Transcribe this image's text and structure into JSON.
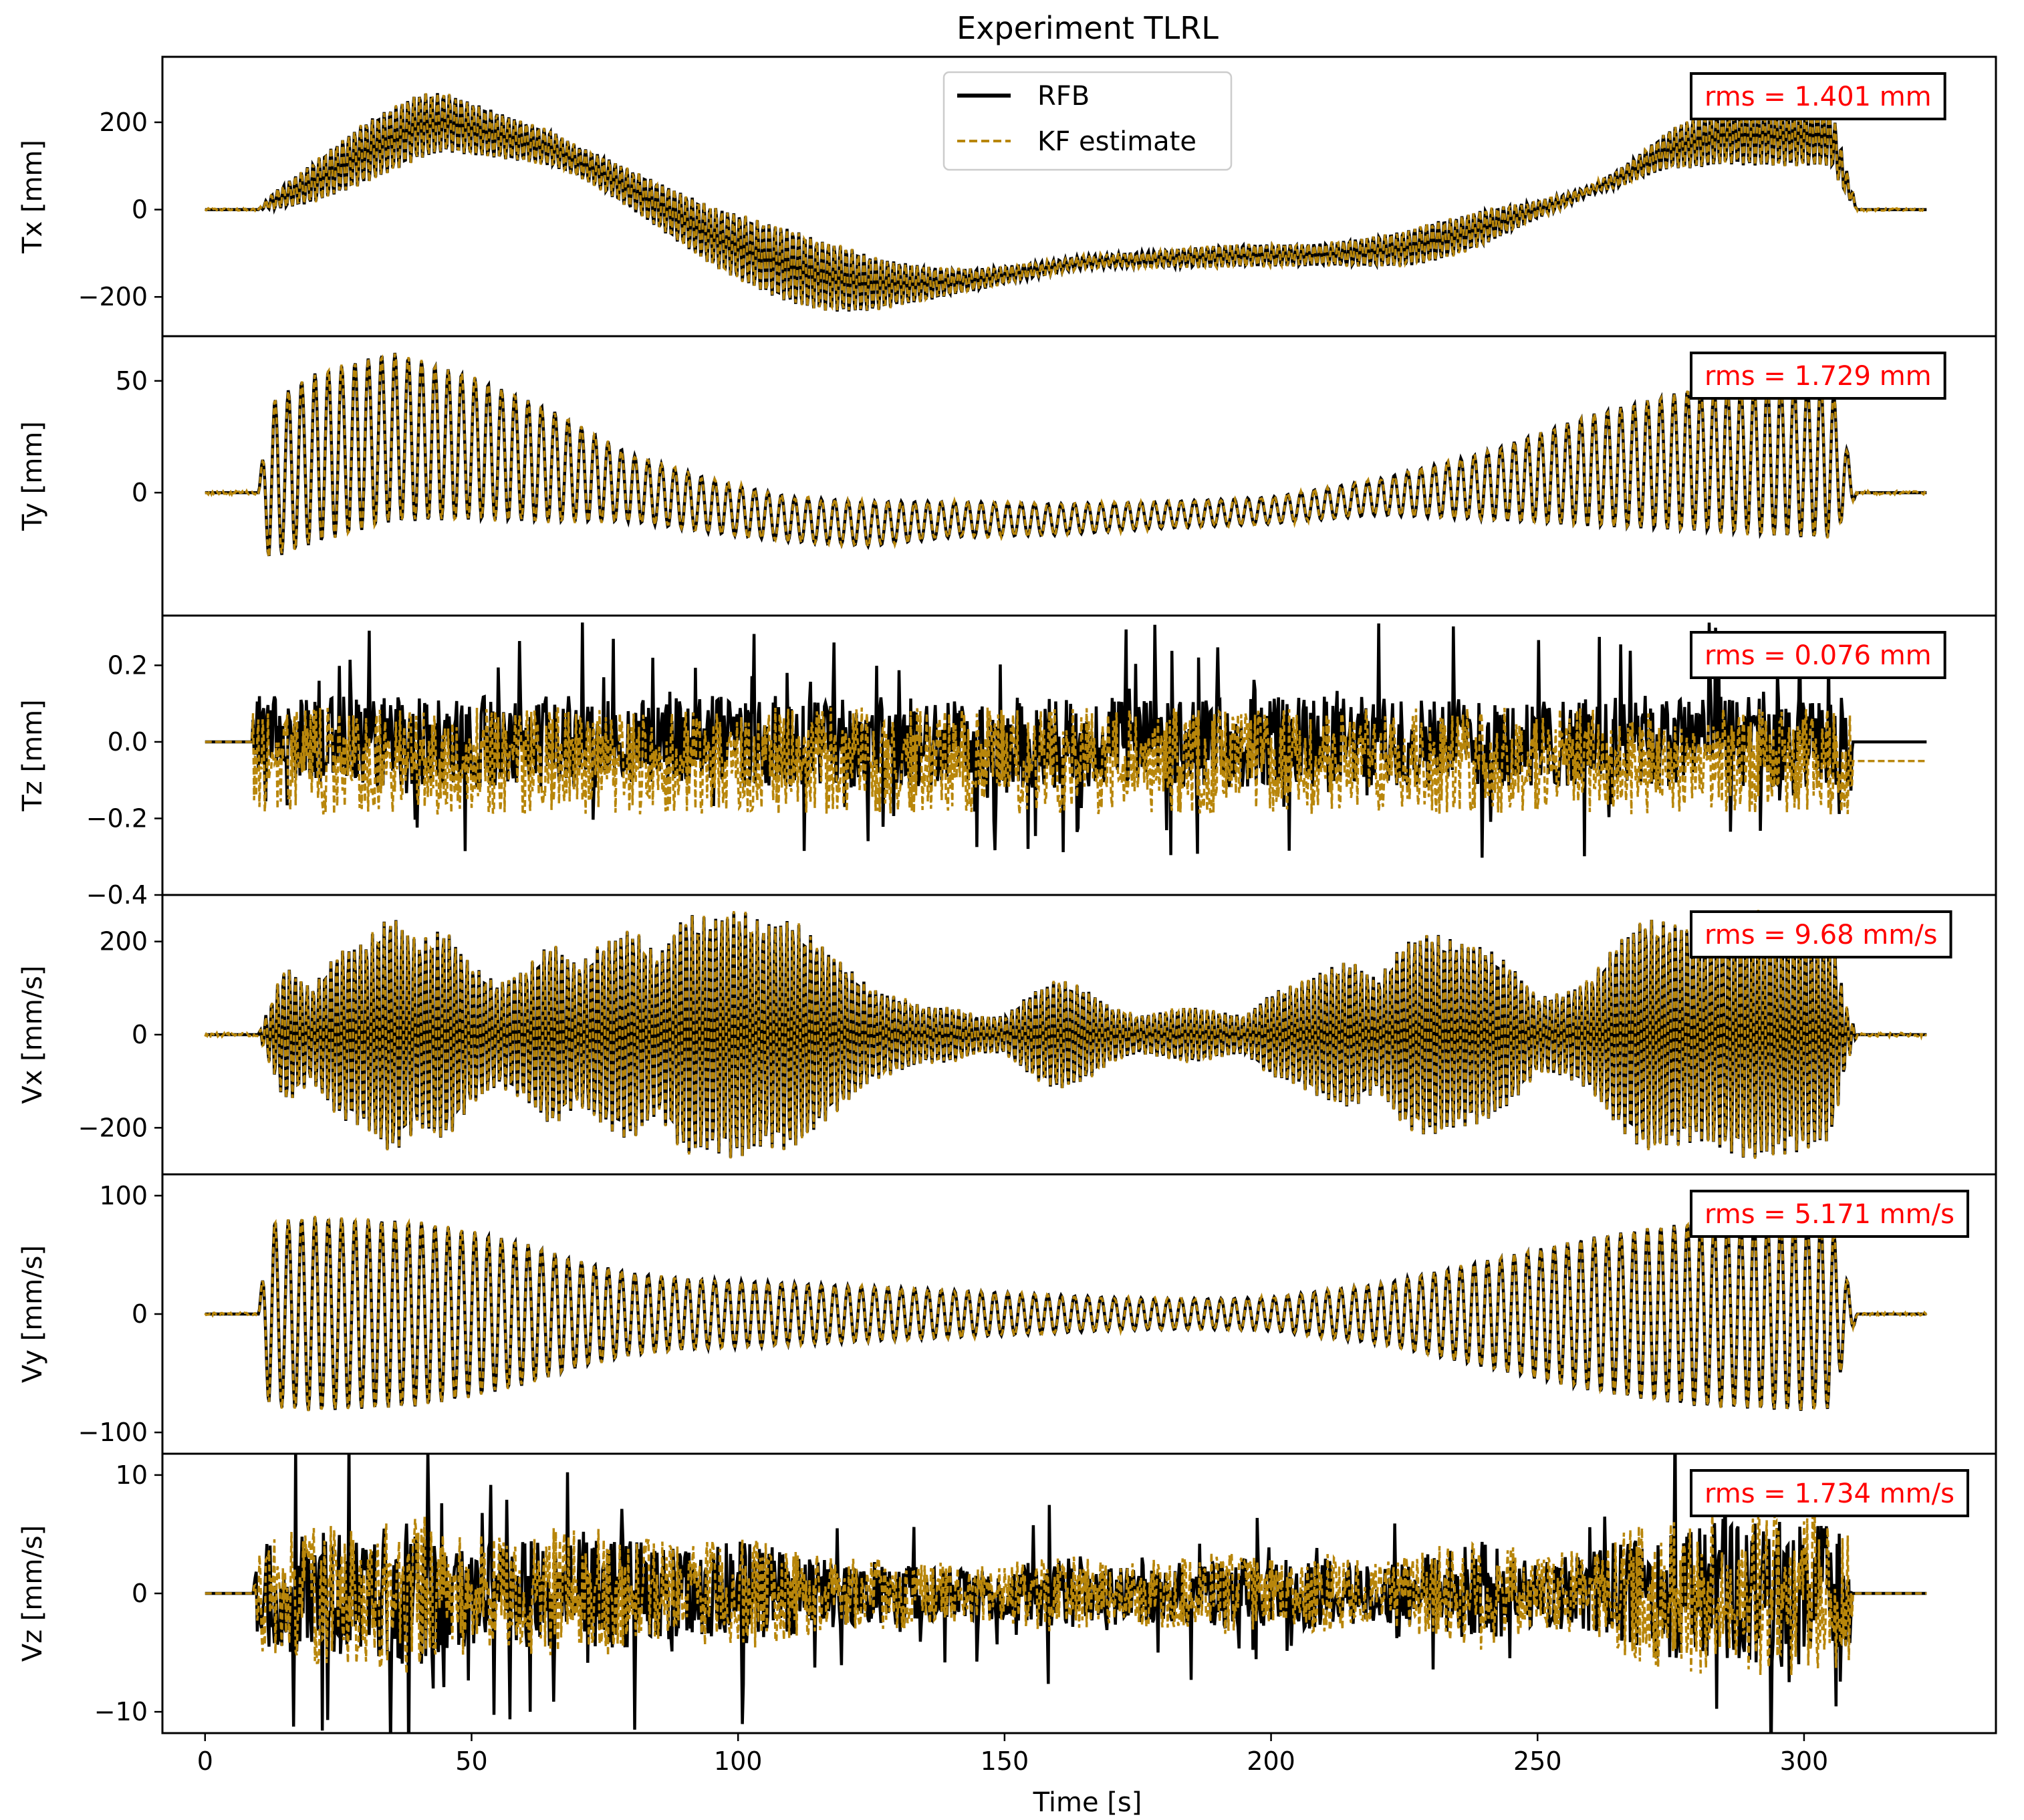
{
  "title": "Experiment TLRL",
  "xlabel": "Time [s]",
  "x_ticks": [
    0,
    50,
    100,
    150,
    200,
    250,
    300
  ],
  "xlim": [
    -8,
    336
  ],
  "legend": {
    "location": "upper-center",
    "entries": [
      {
        "label": "RFB",
        "color": "#000000",
        "style": "solid"
      },
      {
        "label": "KF estimate",
        "color": "#b8860b",
        "style": "dashed"
      }
    ]
  },
  "colors": {
    "rfb": "#000000",
    "kf": "#b8860b",
    "rms_text": "#ff0000"
  },
  "chart_data": [
    {
      "type": "line",
      "ylabel": "Tx [mm]",
      "ylim": [
        -290,
        350
      ],
      "y_ticks": [
        {
          "v": -200,
          "l": "−200"
        },
        {
          "v": 0,
          "l": "0"
        },
        {
          "v": 200,
          "l": "200"
        }
      ],
      "annotation": "rms = 1.401 mm",
      "signal": {
        "kind": "base_osc",
        "noise": 3,
        "base": [
          [
            0,
            0
          ],
          [
            10,
            0
          ],
          [
            12,
            15
          ],
          [
            20,
            60
          ],
          [
            30,
            130
          ],
          [
            40,
            190
          ],
          [
            45,
            200
          ],
          [
            55,
            170
          ],
          [
            65,
            140
          ],
          [
            75,
            80
          ],
          [
            85,
            10
          ],
          [
            95,
            -60
          ],
          [
            105,
            -110
          ],
          [
            115,
            -150
          ],
          [
            125,
            -170
          ],
          [
            135,
            -170
          ],
          [
            145,
            -160
          ],
          [
            155,
            -140
          ],
          [
            165,
            -120
          ],
          [
            175,
            -115
          ],
          [
            185,
            -110
          ],
          [
            195,
            -105
          ],
          [
            205,
            -105
          ],
          [
            215,
            -100
          ],
          [
            225,
            -90
          ],
          [
            235,
            -60
          ],
          [
            245,
            -20
          ],
          [
            255,
            20
          ],
          [
            265,
            70
          ],
          [
            275,
            140
          ],
          [
            285,
            170
          ],
          [
            300,
            170
          ],
          [
            305,
            170
          ],
          [
            308,
            60
          ],
          [
            310,
            0
          ],
          [
            323,
            0
          ]
        ],
        "amp": [
          [
            0,
            0
          ],
          [
            10,
            0
          ],
          [
            13,
            20
          ],
          [
            20,
            45
          ],
          [
            30,
            70
          ],
          [
            40,
            75
          ],
          [
            50,
            60
          ],
          [
            60,
            45
          ],
          [
            70,
            35
          ],
          [
            80,
            45
          ],
          [
            90,
            60
          ],
          [
            100,
            75
          ],
          [
            110,
            85
          ],
          [
            120,
            75
          ],
          [
            130,
            50
          ],
          [
            140,
            30
          ],
          [
            150,
            20
          ],
          [
            160,
            15
          ],
          [
            170,
            15
          ],
          [
            180,
            20
          ],
          [
            190,
            25
          ],
          [
            200,
            25
          ],
          [
            210,
            25
          ],
          [
            220,
            35
          ],
          [
            230,
            45
          ],
          [
            240,
            40
          ],
          [
            250,
            20
          ],
          [
            260,
            10
          ],
          [
            270,
            30
          ],
          [
            280,
            60
          ],
          [
            290,
            70
          ],
          [
            300,
            70
          ],
          [
            305,
            70
          ],
          [
            308,
            30
          ],
          [
            310,
            0
          ],
          [
            323,
            0
          ]
        ],
        "freq": [
          [
            0,
            0.9
          ],
          [
            323,
            0.9
          ]
        ]
      }
    },
    {
      "type": "line",
      "ylabel": "Ty [mm]",
      "ylim": [
        -55,
        70
      ],
      "y_ticks": [
        {
          "v": 0,
          "l": "0"
        },
        {
          "v": 50,
          "l": "50"
        }
      ],
      "annotation": "rms = 1.729 mm",
      "signal": {
        "kind": "base_osc",
        "noise": 0.8,
        "base": [
          [
            0,
            0
          ],
          [
            10,
            0
          ],
          [
            12,
            5
          ],
          [
            20,
            15
          ],
          [
            35,
            25
          ],
          [
            50,
            20
          ],
          [
            65,
            12
          ],
          [
            80,
            2
          ],
          [
            95,
            -6
          ],
          [
            110,
            -12
          ],
          [
            125,
            -14
          ],
          [
            140,
            -12
          ],
          [
            160,
            -12
          ],
          [
            180,
            -10
          ],
          [
            200,
            -8
          ],
          [
            220,
            -2
          ],
          [
            240,
            3
          ],
          [
            260,
            10
          ],
          [
            280,
            15
          ],
          [
            300,
            15
          ],
          [
            305,
            15
          ],
          [
            308,
            5
          ],
          [
            310,
            0
          ],
          [
            323,
            0
          ]
        ],
        "amp": [
          [
            0,
            0
          ],
          [
            10,
            0
          ],
          [
            12,
            35
          ],
          [
            20,
            38
          ],
          [
            35,
            38
          ],
          [
            50,
            32
          ],
          [
            65,
            25
          ],
          [
            80,
            15
          ],
          [
            95,
            12
          ],
          [
            110,
            10
          ],
          [
            125,
            10
          ],
          [
            140,
            8
          ],
          [
            160,
            7
          ],
          [
            180,
            6
          ],
          [
            200,
            6
          ],
          [
            220,
            8
          ],
          [
            240,
            15
          ],
          [
            260,
            25
          ],
          [
            280,
            32
          ],
          [
            300,
            35
          ],
          [
            305,
            35
          ],
          [
            308,
            15
          ],
          [
            310,
            0
          ],
          [
            323,
            0
          ]
        ],
        "freq": [
          [
            0,
            0.4
          ],
          [
            323,
            0.4
          ]
        ]
      }
    },
    {
      "type": "line",
      "ylabel": "Tz [mm]",
      "ylim": [
        -0.4,
        0.33
      ],
      "y_ticks": [
        {
          "v": -0.4,
          "l": "−0.4"
        },
        {
          "v": -0.2,
          "l": "−0.2"
        },
        {
          "v": 0,
          "l": "0.0"
        },
        {
          "v": 0.2,
          "l": "0.2"
        }
      ],
      "annotation": "rms = 0.076 mm",
      "signal": {
        "kind": "noise",
        "active": [
          9,
          309
        ],
        "rfb_center": 0.0,
        "kf_center": -0.05,
        "rfb_amp": 0.12,
        "kf_amp": 0.14,
        "tail_kf": -0.05
      }
    },
    {
      "type": "line",
      "ylabel": "Vx [mm/s]",
      "ylim": [
        -300,
        300
      ],
      "y_ticks": [
        {
          "v": -200,
          "l": "−200"
        },
        {
          "v": 0,
          "l": "0"
        },
        {
          "v": 200,
          "l": "200"
        }
      ],
      "annotation": "rms = 9.68 mm/s",
      "signal": {
        "kind": "beat",
        "noise": 4,
        "amp": [
          [
            0,
            0
          ],
          [
            10,
            0
          ],
          [
            15,
            150
          ],
          [
            20,
            100
          ],
          [
            25,
            180
          ],
          [
            30,
            200
          ],
          [
            35,
            260
          ],
          [
            40,
            200
          ],
          [
            45,
            230
          ],
          [
            50,
            150
          ],
          [
            55,
            110
          ],
          [
            60,
            140
          ],
          [
            65,
            200
          ],
          [
            70,
            150
          ],
          [
            75,
            200
          ],
          [
            80,
            230
          ],
          [
            85,
            170
          ],
          [
            90,
            260
          ],
          [
            95,
            250
          ],
          [
            100,
            270
          ],
          [
            105,
            240
          ],
          [
            110,
            250
          ],
          [
            115,
            200
          ],
          [
            120,
            150
          ],
          [
            125,
            100
          ],
          [
            130,
            80
          ],
          [
            135,
            60
          ],
          [
            140,
            60
          ],
          [
            145,
            40
          ],
          [
            150,
            40
          ],
          [
            155,
            90
          ],
          [
            160,
            120
          ],
          [
            165,
            100
          ],
          [
            170,
            60
          ],
          [
            175,
            40
          ],
          [
            180,
            50
          ],
          [
            185,
            60
          ],
          [
            190,
            50
          ],
          [
            195,
            40
          ],
          [
            200,
            90
          ],
          [
            205,
            110
          ],
          [
            210,
            140
          ],
          [
            215,
            160
          ],
          [
            220,
            120
          ],
          [
            225,
            200
          ],
          [
            230,
            220
          ],
          [
            235,
            200
          ],
          [
            240,
            190
          ],
          [
            245,
            150
          ],
          [
            250,
            80
          ],
          [
            255,
            90
          ],
          [
            260,
            120
          ],
          [
            265,
            200
          ],
          [
            270,
            250
          ],
          [
            275,
            240
          ],
          [
            280,
            230
          ],
          [
            285,
            250
          ],
          [
            290,
            270
          ],
          [
            300,
            250
          ],
          [
            305,
            230
          ],
          [
            308,
            60
          ],
          [
            310,
            0
          ],
          [
            323,
            0
          ]
        ],
        "freq": [
          [
            0,
            0.9
          ],
          [
            323,
            0.9
          ]
        ]
      }
    },
    {
      "type": "line",
      "ylabel": "Vy [mm/s]",
      "ylim": [
        -118,
        118
      ],
      "y_ticks": [
        {
          "v": -100,
          "l": "−100"
        },
        {
          "v": 0,
          "l": "0"
        },
        {
          "v": 100,
          "l": "100"
        }
      ],
      "annotation": "rms = 5.171 mm/s",
      "signal": {
        "kind": "base_osc",
        "noise": 1.2,
        "base": [
          [
            0,
            0
          ],
          [
            323,
            0
          ]
        ],
        "amp": [
          [
            0,
            0
          ],
          [
            10,
            0
          ],
          [
            12,
            78
          ],
          [
            20,
            82
          ],
          [
            30,
            80
          ],
          [
            40,
            78
          ],
          [
            50,
            70
          ],
          [
            60,
            60
          ],
          [
            70,
            45
          ],
          [
            80,
            35
          ],
          [
            90,
            30
          ],
          [
            100,
            28
          ],
          [
            110,
            26
          ],
          [
            120,
            24
          ],
          [
            130,
            22
          ],
          [
            140,
            20
          ],
          [
            150,
            18
          ],
          [
            160,
            16
          ],
          [
            170,
            14
          ],
          [
            180,
            13
          ],
          [
            190,
            13
          ],
          [
            200,
            14
          ],
          [
            210,
            20
          ],
          [
            220,
            25
          ],
          [
            230,
            35
          ],
          [
            240,
            45
          ],
          [
            250,
            55
          ],
          [
            260,
            65
          ],
          [
            270,
            72
          ],
          [
            280,
            78
          ],
          [
            290,
            80
          ],
          [
            300,
            82
          ],
          [
            305,
            80
          ],
          [
            308,
            30
          ],
          [
            310,
            0
          ],
          [
            323,
            0
          ]
        ],
        "freq": [
          [
            0,
            0.4
          ],
          [
            323,
            0.4
          ]
        ]
      }
    },
    {
      "type": "line",
      "ylabel": "Vz [mm/s]",
      "ylim": [
        -11.8,
        11.8
      ],
      "y_ticks": [
        {
          "v": -10,
          "l": "−10"
        },
        {
          "v": 0,
          "l": "0"
        },
        {
          "v": 10,
          "l": "10"
        }
      ],
      "annotation": "rms = 1.734 mm/s",
      "signal": {
        "kind": "noise",
        "active": [
          9,
          309
        ],
        "rfb_center": 0.0,
        "kf_center": 0.0,
        "rfb_amp": 4.5,
        "kf_amp": 5.0,
        "tail_kf": 0.0,
        "envelope": [
          [
            0,
            0
          ],
          [
            9,
            0
          ],
          [
            10,
            5
          ],
          [
            20,
            6
          ],
          [
            30,
            6
          ],
          [
            40,
            7
          ],
          [
            50,
            5
          ],
          [
            60,
            5
          ],
          [
            70,
            6
          ],
          [
            80,
            5
          ],
          [
            90,
            4
          ],
          [
            100,
            5
          ],
          [
            110,
            4
          ],
          [
            120,
            3
          ],
          [
            130,
            3
          ],
          [
            140,
            2.5
          ],
          [
            150,
            2.5
          ],
          [
            160,
            3.5
          ],
          [
            170,
            2.5
          ],
          [
            180,
            3
          ],
          [
            190,
            3.5
          ],
          [
            200,
            3
          ],
          [
            210,
            3.5
          ],
          [
            220,
            2.5
          ],
          [
            230,
            4
          ],
          [
            240,
            5
          ],
          [
            250,
            3
          ],
          [
            260,
            4
          ],
          [
            270,
            6
          ],
          [
            280,
            7
          ],
          [
            290,
            7
          ],
          [
            300,
            7
          ],
          [
            309,
            6
          ],
          [
            310,
            0
          ],
          [
            323,
            0
          ]
        ]
      }
    }
  ]
}
